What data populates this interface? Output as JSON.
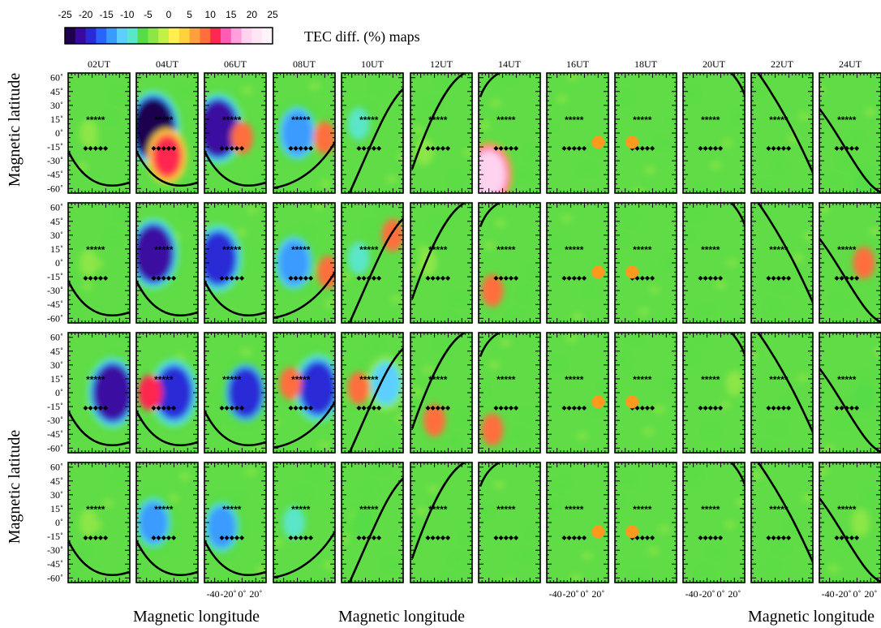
{
  "chart_data": {
    "type": "heatmap",
    "title": "TEC diff. (%) maps",
    "colorbar": {
      "ticks": [
        "-25",
        "-20",
        "-15",
        "-10",
        "-5",
        "0",
        "5",
        "10",
        "15",
        "20",
        "25"
      ],
      "colors": [
        "#1e0050",
        "#3a0aa0",
        "#2a2ad6",
        "#2a64ff",
        "#3a9bff",
        "#5ccfff",
        "#5ae6c8",
        "#55dc46",
        "#8ce646",
        "#c3f046",
        "#fff050",
        "#ffd23c",
        "#ffa03c",
        "#ff6e3c",
        "#ff2850",
        "#ff5ab4",
        "#ffa0dc",
        "#ffd2f0",
        "#ffe6f5",
        "#fff3fa"
      ]
    },
    "columns": [
      "02UT",
      "04UT",
      "06UT",
      "08UT",
      "10UT",
      "12UT",
      "14UT",
      "16UT",
      "18UT",
      "20UT",
      "22UT",
      "24UT"
    ],
    "ylabel": "Magnetic latitude",
    "xlabel": "Magnetic longitude",
    "ytick_labels": [
      "60˚",
      "45˚",
      "30˚",
      "15˚",
      "0˚",
      "-15˚",
      "-30˚",
      "-45˚",
      "-60˚"
    ],
    "ytick_values": [
      60,
      45,
      30,
      15,
      0,
      -15,
      -30,
      -45,
      -60
    ],
    "xtick_labels": [
      "-40",
      "-20˚",
      "0˚",
      "20˚"
    ],
    "xtick_values": [
      -40,
      -20,
      0,
      20
    ],
    "lon_range": [
      -55,
      35
    ],
    "lat_range": [
      -65,
      65
    ],
    "marker_rows": {
      "star_lat": 15,
      "diamond_lat": -15,
      "star_symbol": "*****",
      "diamond_symbol": "◆◆◆◆◆"
    },
    "sun_marker": {
      "color": "#ff9a1e",
      "positions": [
        {
          "column": "16UT",
          "lon": 20,
          "lat": -10
        },
        {
          "column": "18UT",
          "lon": -30,
          "lat": -10
        }
      ]
    },
    "terminator_shape": [
      {
        "column": "02UT",
        "shape": "sag"
      },
      {
        "column": "04UT",
        "shape": "sag"
      },
      {
        "column": "06UT",
        "shape": "sag"
      },
      {
        "column": "08UT",
        "shape": "rise"
      },
      {
        "column": "10UT",
        "shape": "rise"
      },
      {
        "column": "12UT",
        "shape": "rise"
      },
      {
        "column": "14UT",
        "shape": "top"
      },
      {
        "column": "16UT",
        "shape": "none"
      },
      {
        "column": "18UT",
        "shape": "none"
      },
      {
        "column": "20UT",
        "shape": "top"
      },
      {
        "column": "22UT",
        "shape": "fall"
      },
      {
        "column": "24UT",
        "shape": "fall"
      }
    ],
    "rows": [
      {
        "label": "row1",
        "patches": [
          {
            "column": "02UT",
            "lon": -25,
            "lat": 0,
            "value": -5
          },
          {
            "column": "04UT",
            "lon": -30,
            "lat": 5,
            "value": -25
          },
          {
            "column": "04UT",
            "lon": -10,
            "lat": -25,
            "value": 12
          },
          {
            "column": "06UT",
            "lon": -35,
            "lat": 5,
            "value": -22
          },
          {
            "column": "06UT",
            "lon": 0,
            "lat": -5,
            "value": 8
          },
          {
            "column": "08UT",
            "lon": -20,
            "lat": 0,
            "value": -15
          },
          {
            "column": "08UT",
            "lon": 20,
            "lat": -5,
            "value": 8
          },
          {
            "column": "10UT",
            "lon": -30,
            "lat": 10,
            "value": -8
          },
          {
            "column": "12UT",
            "lon": -35,
            "lat": -20,
            "value": -5
          },
          {
            "column": "14UT",
            "lon": -40,
            "lat": -45,
            "value": 18
          },
          {
            "column": "24UT",
            "lon": 10,
            "lat": -55,
            "value": -6
          }
        ]
      },
      {
        "label": "row2",
        "patches": [
          {
            "column": "02UT",
            "lon": -25,
            "lat": 0,
            "value": -5
          },
          {
            "column": "04UT",
            "lon": -30,
            "lat": 10,
            "value": -22
          },
          {
            "column": "06UT",
            "lon": -35,
            "lat": 5,
            "value": -20
          },
          {
            "column": "08UT",
            "lon": -25,
            "lat": 0,
            "value": -15
          },
          {
            "column": "08UT",
            "lon": 25,
            "lat": -10,
            "value": 8
          },
          {
            "column": "10UT",
            "lon": -30,
            "lat": 5,
            "value": -8
          },
          {
            "column": "10UT",
            "lon": 20,
            "lat": 30,
            "value": 8
          },
          {
            "column": "12UT",
            "lon": -30,
            "lat": 0,
            "value": -5
          },
          {
            "column": "14UT",
            "lon": -35,
            "lat": -30,
            "value": 8
          },
          {
            "column": "24UT",
            "lon": 10,
            "lat": 0,
            "value": 8
          }
        ]
      },
      {
        "label": "row3",
        "patches": [
          {
            "column": "02UT",
            "lon": 10,
            "lat": 0,
            "value": -22
          },
          {
            "column": "04UT",
            "lon": 0,
            "lat": 0,
            "value": -20
          },
          {
            "column": "04UT",
            "lon": -35,
            "lat": 0,
            "value": 10
          },
          {
            "column": "06UT",
            "lon": 5,
            "lat": 0,
            "value": -18
          },
          {
            "column": "08UT",
            "lon": 10,
            "lat": 5,
            "value": -20
          },
          {
            "column": "08UT",
            "lon": -30,
            "lat": 10,
            "value": 8
          },
          {
            "column": "10UT",
            "lon": 10,
            "lat": 10,
            "value": -12
          },
          {
            "column": "10UT",
            "lon": -30,
            "lat": 5,
            "value": 8
          },
          {
            "column": "12UT",
            "lon": -20,
            "lat": -30,
            "value": 8
          },
          {
            "column": "14UT",
            "lon": -35,
            "lat": -40,
            "value": 8
          },
          {
            "column": "20UT",
            "lon": 20,
            "lat": 10,
            "value": -4
          },
          {
            "column": "24UT",
            "lon": 10,
            "lat": -5,
            "value": -6
          }
        ]
      },
      {
        "label": "row4",
        "patches": [
          {
            "column": "02UT",
            "lon": -25,
            "lat": 0,
            "value": -5
          },
          {
            "column": "04UT",
            "lon": -30,
            "lat": 0,
            "value": -14
          },
          {
            "column": "06UT",
            "lon": -30,
            "lat": -5,
            "value": -14
          },
          {
            "column": "08UT",
            "lon": -25,
            "lat": 0,
            "value": -8
          },
          {
            "column": "10UT",
            "lon": -25,
            "lat": 0,
            "value": -6
          },
          {
            "column": "24UT",
            "lon": 5,
            "lat": 0,
            "value": -5
          }
        ]
      }
    ],
    "bottom_axis_columns": [
      "06UT",
      "16UT",
      "20UT",
      "24UT"
    ],
    "bottom_label_columns": [
      "04UT",
      "10UT",
      "22UT"
    ],
    "left_label_rows": [
      0,
      3
    ]
  }
}
